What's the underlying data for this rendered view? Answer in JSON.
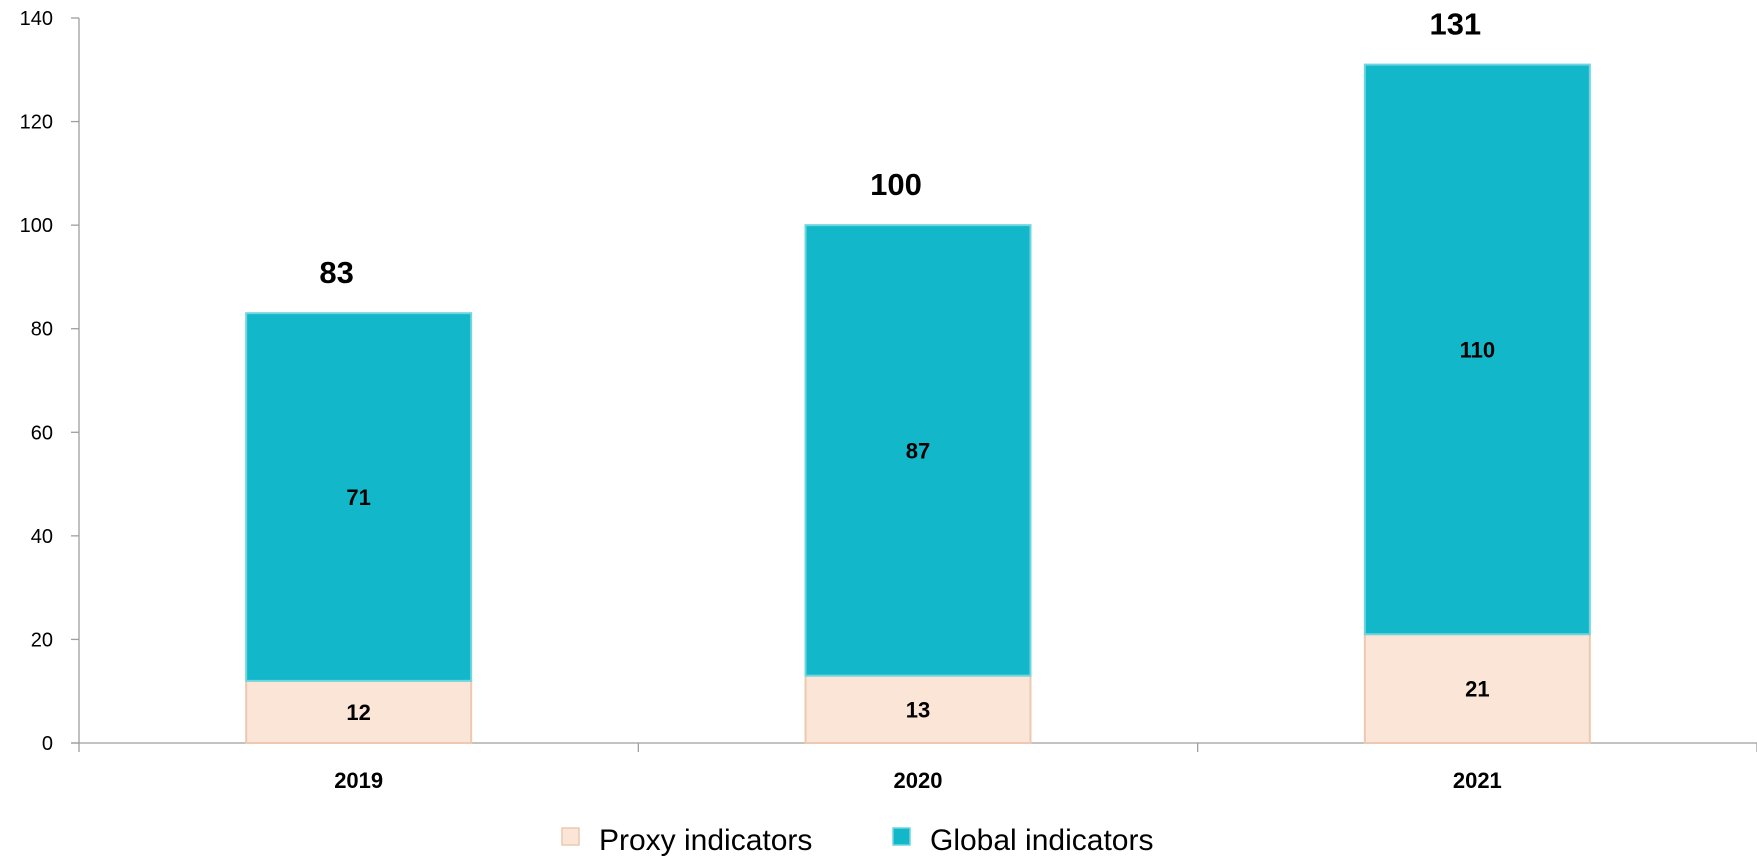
{
  "chart_data": {
    "type": "bar",
    "stacked": true,
    "categories": [
      "2019",
      "2020",
      "2021"
    ],
    "series": [
      {
        "name": "Proxy indicators",
        "values": [
          12,
          13,
          21
        ],
        "color": "#fbe5d6"
      },
      {
        "name": "Global indicators",
        "values": [
          71,
          87,
          110
        ],
        "color": "#12b8c9"
      }
    ],
    "totals": [
      83,
      100,
      131
    ],
    "ylim": [
      0,
      140
    ],
    "yticks": [
      0,
      20,
      40,
      60,
      80,
      100,
      120,
      140
    ],
    "title": "",
    "xlabel": "",
    "ylabel": "",
    "grid": false,
    "legend_position": "bottom",
    "colors": {
      "axis": "#9e9e9e",
      "text": "#000000"
    }
  }
}
